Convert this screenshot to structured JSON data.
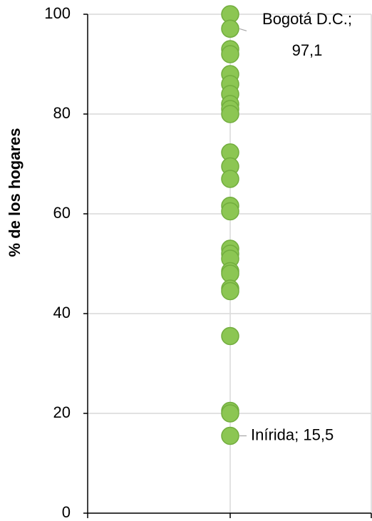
{
  "chart_data": {
    "type": "scatter",
    "ylabel": "% de los hogares",
    "series": [
      {
        "color": "#8cc653",
        "values": [
          100,
          97.1,
          93,
          92,
          88,
          86,
          84,
          82,
          81,
          80,
          72.3,
          69.5,
          67,
          61.6,
          60.5,
          53,
          52,
          51,
          48.5,
          48,
          45,
          44.5,
          35.5,
          20.5,
          20,
          15.5
        ],
        "value_labels": [
          null,
          [
            "Bogotá D.C.;",
            "97,1"
          ],
          null,
          null,
          null,
          null,
          null,
          null,
          null,
          null,
          null,
          null,
          null,
          null,
          null,
          null,
          null,
          null,
          null,
          null,
          null,
          null,
          null,
          null,
          null,
          [
            "Inírida; 15,5"
          ]
        ]
      }
    ],
    "ylim": [
      0,
      100
    ],
    "yticks": [
      0,
      20,
      40,
      60,
      80,
      100
    ],
    "grid": true
  }
}
